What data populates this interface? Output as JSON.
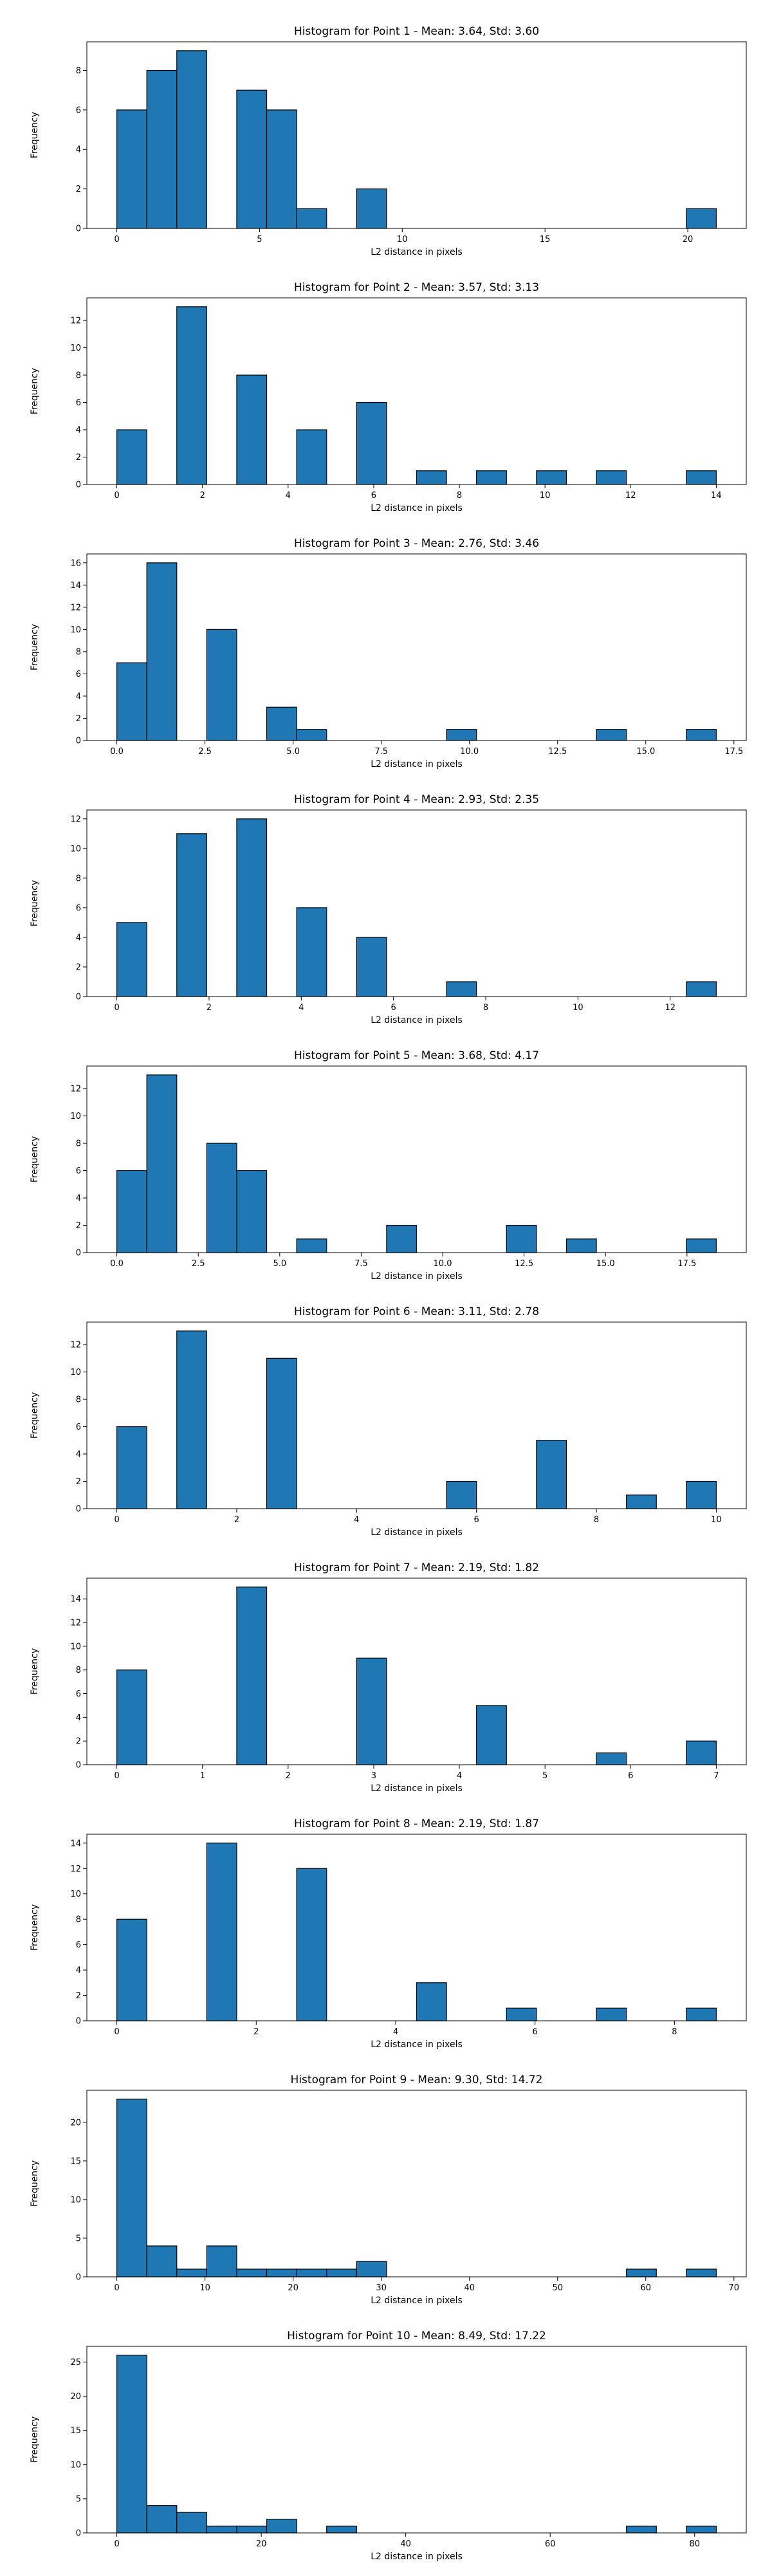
{
  "figure": {
    "xlabel": "L2 distance in pixels",
    "ylabel": "Frequency"
  },
  "chart_data": [
    {
      "type": "bar",
      "title": "Histogram for Point 1 - Mean: 3.64, Std: 3.60",
      "xlabel": "L2 distance in pixels",
      "ylabel": "Frequency",
      "xlim": [
        -1.05,
        22.05
      ],
      "ylim": [
        0,
        9.45
      ],
      "xticks": [
        0,
        5,
        10,
        15,
        20
      ],
      "xtick_labels": [
        "0",
        "5",
        "10",
        "15",
        "20"
      ],
      "yticks": [
        0,
        2,
        4,
        6,
        8
      ],
      "ytick_labels": [
        "0",
        "2",
        "4",
        "6",
        "8"
      ],
      "bins": [
        {
          "start": 0,
          "end": 1.05,
          "count": 6
        },
        {
          "start": 1.05,
          "end": 2.1,
          "count": 8
        },
        {
          "start": 2.1,
          "end": 3.15,
          "count": 9
        },
        {
          "start": 4.2,
          "end": 5.25,
          "count": 7
        },
        {
          "start": 5.25,
          "end": 6.3,
          "count": 6
        },
        {
          "start": 6.3,
          "end": 7.35,
          "count": 1
        },
        {
          "start": 8.4,
          "end": 9.45,
          "count": 2
        },
        {
          "start": 19.95,
          "end": 21.0,
          "count": 1
        }
      ]
    },
    {
      "type": "bar",
      "title": "Histogram for Point 2 - Mean: 3.57, Std: 3.13",
      "xlabel": "L2 distance in pixels",
      "ylabel": "Frequency",
      "xlim": [
        -0.7,
        14.7
      ],
      "ylim": [
        0,
        13.65
      ],
      "xticks": [
        0,
        2,
        4,
        6,
        8,
        10,
        12,
        14
      ],
      "xtick_labels": [
        "0",
        "2",
        "4",
        "6",
        "8",
        "10",
        "12",
        "14"
      ],
      "yticks": [
        0,
        2,
        4,
        6,
        8,
        10,
        12
      ],
      "ytick_labels": [
        "0",
        "2",
        "4",
        "6",
        "8",
        "10",
        "12"
      ],
      "bins": [
        {
          "start": 0,
          "end": 0.7,
          "count": 4
        },
        {
          "start": 1.4,
          "end": 2.1,
          "count": 13
        },
        {
          "start": 2.8,
          "end": 3.5,
          "count": 8
        },
        {
          "start": 4.2,
          "end": 4.9,
          "count": 4
        },
        {
          "start": 5.6,
          "end": 6.3,
          "count": 6
        },
        {
          "start": 7.0,
          "end": 7.7,
          "count": 1
        },
        {
          "start": 8.4,
          "end": 9.1,
          "count": 1
        },
        {
          "start": 9.8,
          "end": 10.5,
          "count": 1
        },
        {
          "start": 11.2,
          "end": 11.9,
          "count": 1
        },
        {
          "start": 13.3,
          "end": 14.0,
          "count": 1
        }
      ]
    },
    {
      "type": "bar",
      "title": "Histogram for Point 3 - Mean: 2.76, Std: 3.46",
      "xlabel": "L2 distance in pixels",
      "ylabel": "Frequency",
      "xlim": [
        -0.85,
        17.85
      ],
      "ylim": [
        0,
        16.8
      ],
      "xticks": [
        0,
        2.5,
        5,
        7.5,
        10,
        12.5,
        15,
        17.5
      ],
      "xtick_labels": [
        "0.0",
        "2.5",
        "5.0",
        "7.5",
        "10.0",
        "12.5",
        "15.0",
        "17.5"
      ],
      "yticks": [
        0,
        2,
        4,
        6,
        8,
        10,
        12,
        14,
        16
      ],
      "ytick_labels": [
        "0",
        "2",
        "4",
        "6",
        "8",
        "10",
        "12",
        "14",
        "16"
      ],
      "bins": [
        {
          "start": 0,
          "end": 0.85,
          "count": 7
        },
        {
          "start": 0.85,
          "end": 1.7,
          "count": 16
        },
        {
          "start": 2.55,
          "end": 3.4,
          "count": 10
        },
        {
          "start": 4.25,
          "end": 5.1,
          "count": 3
        },
        {
          "start": 5.1,
          "end": 5.95,
          "count": 1
        },
        {
          "start": 9.35,
          "end": 10.2,
          "count": 1
        },
        {
          "start": 13.6,
          "end": 14.45,
          "count": 1
        },
        {
          "start": 16.15,
          "end": 17.0,
          "count": 1
        }
      ]
    },
    {
      "type": "bar",
      "title": "Histogram for Point 4 - Mean: 2.93, Std: 2.35",
      "xlabel": "L2 distance in pixels",
      "ylabel": "Frequency",
      "xlim": [
        -0.65,
        13.65
      ],
      "ylim": [
        0,
        12.6
      ],
      "xticks": [
        0,
        2,
        4,
        6,
        8,
        10,
        12
      ],
      "xtick_labels": [
        "0",
        "2",
        "4",
        "6",
        "8",
        "10",
        "12"
      ],
      "yticks": [
        0,
        2,
        4,
        6,
        8,
        10,
        12
      ],
      "ytick_labels": [
        "0",
        "2",
        "4",
        "6",
        "8",
        "10",
        "12"
      ],
      "bins": [
        {
          "start": 0,
          "end": 0.65,
          "count": 5
        },
        {
          "start": 1.3,
          "end": 1.95,
          "count": 11
        },
        {
          "start": 2.6,
          "end": 3.25,
          "count": 12
        },
        {
          "start": 3.9,
          "end": 4.55,
          "count": 6
        },
        {
          "start": 5.2,
          "end": 5.85,
          "count": 4
        },
        {
          "start": 7.15,
          "end": 7.8,
          "count": 1
        },
        {
          "start": 12.35,
          "end": 13.0,
          "count": 1
        }
      ]
    },
    {
      "type": "bar",
      "title": "Histogram for Point 5 - Mean: 3.68, Std: 4.17",
      "xlabel": "L2 distance in pixels",
      "ylabel": "Frequency",
      "xlim": [
        -0.92,
        19.32
      ],
      "ylim": [
        0,
        13.65
      ],
      "xticks": [
        0,
        2.5,
        5,
        7.5,
        10,
        12.5,
        15,
        17.5
      ],
      "xtick_labels": [
        "0.0",
        "2.5",
        "5.0",
        "7.5",
        "10.0",
        "12.5",
        "15.0",
        "17.5"
      ],
      "yticks": [
        0,
        2,
        4,
        6,
        8,
        10,
        12
      ],
      "ytick_labels": [
        "0",
        "2",
        "4",
        "6",
        "8",
        "10",
        "12"
      ],
      "bins": [
        {
          "start": 0,
          "end": 0.92,
          "count": 6
        },
        {
          "start": 0.92,
          "end": 1.84,
          "count": 13
        },
        {
          "start": 2.76,
          "end": 3.68,
          "count": 8
        },
        {
          "start": 3.68,
          "end": 4.6,
          "count": 6
        },
        {
          "start": 5.52,
          "end": 6.44,
          "count": 1
        },
        {
          "start": 8.28,
          "end": 9.2,
          "count": 2
        },
        {
          "start": 11.96,
          "end": 12.88,
          "count": 2
        },
        {
          "start": 13.8,
          "end": 14.72,
          "count": 1
        },
        {
          "start": 17.48,
          "end": 18.4,
          "count": 1
        }
      ]
    },
    {
      "type": "bar",
      "title": "Histogram for Point 6 - Mean: 3.11, Std: 2.78",
      "xlabel": "L2 distance in pixels",
      "ylabel": "Frequency",
      "xlim": [
        -0.5,
        10.5
      ],
      "ylim": [
        0,
        13.65
      ],
      "xticks": [
        0,
        2,
        4,
        6,
        8,
        10
      ],
      "xtick_labels": [
        "0",
        "2",
        "4",
        "6",
        "8",
        "10"
      ],
      "yticks": [
        0,
        2,
        4,
        6,
        8,
        10,
        12
      ],
      "ytick_labels": [
        "0",
        "2",
        "4",
        "6",
        "8",
        "10",
        "12"
      ],
      "bins": [
        {
          "start": 0,
          "end": 0.5,
          "count": 6
        },
        {
          "start": 1.0,
          "end": 1.5,
          "count": 13
        },
        {
          "start": 2.5,
          "end": 3.0,
          "count": 11
        },
        {
          "start": 5.5,
          "end": 6.0,
          "count": 2
        },
        {
          "start": 7.0,
          "end": 7.5,
          "count": 5
        },
        {
          "start": 8.5,
          "end": 9.0,
          "count": 1
        },
        {
          "start": 9.5,
          "end": 10.0,
          "count": 2
        }
      ]
    },
    {
      "type": "bar",
      "title": "Histogram for Point 7 - Mean: 2.19, Std: 1.82",
      "xlabel": "L2 distance in pixels",
      "ylabel": "Frequency",
      "xlim": [
        -0.35,
        7.35
      ],
      "ylim": [
        0,
        15.75
      ],
      "xticks": [
        0,
        1,
        2,
        3,
        4,
        5,
        6,
        7
      ],
      "xtick_labels": [
        "0",
        "1",
        "2",
        "3",
        "4",
        "5",
        "6",
        "7"
      ],
      "yticks": [
        0,
        2,
        4,
        6,
        8,
        10,
        12,
        14
      ],
      "ytick_labels": [
        "0",
        "2",
        "4",
        "6",
        "8",
        "10",
        "12",
        "14"
      ],
      "bins": [
        {
          "start": 0,
          "end": 0.35,
          "count": 8
        },
        {
          "start": 1.4,
          "end": 1.75,
          "count": 15
        },
        {
          "start": 2.8,
          "end": 3.15,
          "count": 9
        },
        {
          "start": 4.2,
          "end": 4.55,
          "count": 5
        },
        {
          "start": 5.6,
          "end": 5.95,
          "count": 1
        },
        {
          "start": 6.65,
          "end": 7.0,
          "count": 2
        }
      ]
    },
    {
      "type": "bar",
      "title": "Histogram for Point 8 - Mean: 2.19, Std: 1.87",
      "xlabel": "L2 distance in pixels",
      "ylabel": "Frequency",
      "xlim": [
        -0.43,
        9.03
      ],
      "ylim": [
        0,
        14.7
      ],
      "xticks": [
        0,
        2,
        4,
        6,
        8
      ],
      "xtick_labels": [
        "0",
        "2",
        "4",
        "6",
        "8"
      ],
      "yticks": [
        0,
        2,
        4,
        6,
        8,
        10,
        12,
        14
      ],
      "ytick_labels": [
        "0",
        "2",
        "4",
        "6",
        "8",
        "10",
        "12",
        "14"
      ],
      "bins": [
        {
          "start": 0,
          "end": 0.43,
          "count": 8
        },
        {
          "start": 1.29,
          "end": 1.72,
          "count": 14
        },
        {
          "start": 2.58,
          "end": 3.01,
          "count": 12
        },
        {
          "start": 4.3,
          "end": 4.73,
          "count": 3
        },
        {
          "start": 5.59,
          "end": 6.02,
          "count": 1
        },
        {
          "start": 6.88,
          "end": 7.31,
          "count": 1
        },
        {
          "start": 8.17,
          "end": 8.6,
          "count": 1
        }
      ]
    },
    {
      "type": "bar",
      "title": "Histogram for Point 9 - Mean: 9.30, Std: 14.72",
      "xlabel": "L2 distance in pixels",
      "ylabel": "Frequency",
      "xlim": [
        -3.4,
        71.4
      ],
      "ylim": [
        0,
        24.15
      ],
      "xticks": [
        0,
        10,
        20,
        30,
        40,
        50,
        60,
        70
      ],
      "xtick_labels": [
        "0",
        "10",
        "20",
        "30",
        "40",
        "50",
        "60",
        "70"
      ],
      "yticks": [
        0,
        5,
        10,
        15,
        20
      ],
      "ytick_labels": [
        "0",
        "5",
        "10",
        "15",
        "20"
      ],
      "bins": [
        {
          "start": 0,
          "end": 3.4,
          "count": 23
        },
        {
          "start": 3.4,
          "end": 6.8,
          "count": 4
        },
        {
          "start": 6.8,
          "end": 10.2,
          "count": 1
        },
        {
          "start": 10.2,
          "end": 13.6,
          "count": 4
        },
        {
          "start": 13.6,
          "end": 17.0,
          "count": 1
        },
        {
          "start": 17.0,
          "end": 20.4,
          "count": 1
        },
        {
          "start": 20.4,
          "end": 23.8,
          "count": 1
        },
        {
          "start": 23.8,
          "end": 27.2,
          "count": 1
        },
        {
          "start": 27.2,
          "end": 30.6,
          "count": 2
        },
        {
          "start": 57.8,
          "end": 61.2,
          "count": 1
        },
        {
          "start": 64.6,
          "end": 68.0,
          "count": 1
        }
      ]
    },
    {
      "type": "bar",
      "title": "Histogram for Point 10 - Mean: 8.49, Std: 17.22",
      "xlabel": "L2 distance in pixels",
      "ylabel": "Frequency",
      "xlim": [
        -4.15,
        87.15
      ],
      "ylim": [
        0,
        27.3
      ],
      "xticks": [
        0,
        20,
        40,
        60,
        80
      ],
      "xtick_labels": [
        "0",
        "20",
        "40",
        "60",
        "80"
      ],
      "yticks": [
        0,
        5,
        10,
        15,
        20,
        25
      ],
      "ytick_labels": [
        "0",
        "5",
        "10",
        "15",
        "20",
        "25"
      ],
      "bins": [
        {
          "start": 0,
          "end": 4.15,
          "count": 26
        },
        {
          "start": 4.15,
          "end": 8.3,
          "count": 4
        },
        {
          "start": 8.3,
          "end": 12.45,
          "count": 3
        },
        {
          "start": 12.45,
          "end": 16.6,
          "count": 1
        },
        {
          "start": 16.6,
          "end": 20.75,
          "count": 1
        },
        {
          "start": 20.75,
          "end": 24.9,
          "count": 2
        },
        {
          "start": 29.05,
          "end": 33.2,
          "count": 1
        },
        {
          "start": 70.55,
          "end": 74.7,
          "count": 1
        },
        {
          "start": 78.85,
          "end": 83.0,
          "count": 1
        }
      ]
    }
  ]
}
